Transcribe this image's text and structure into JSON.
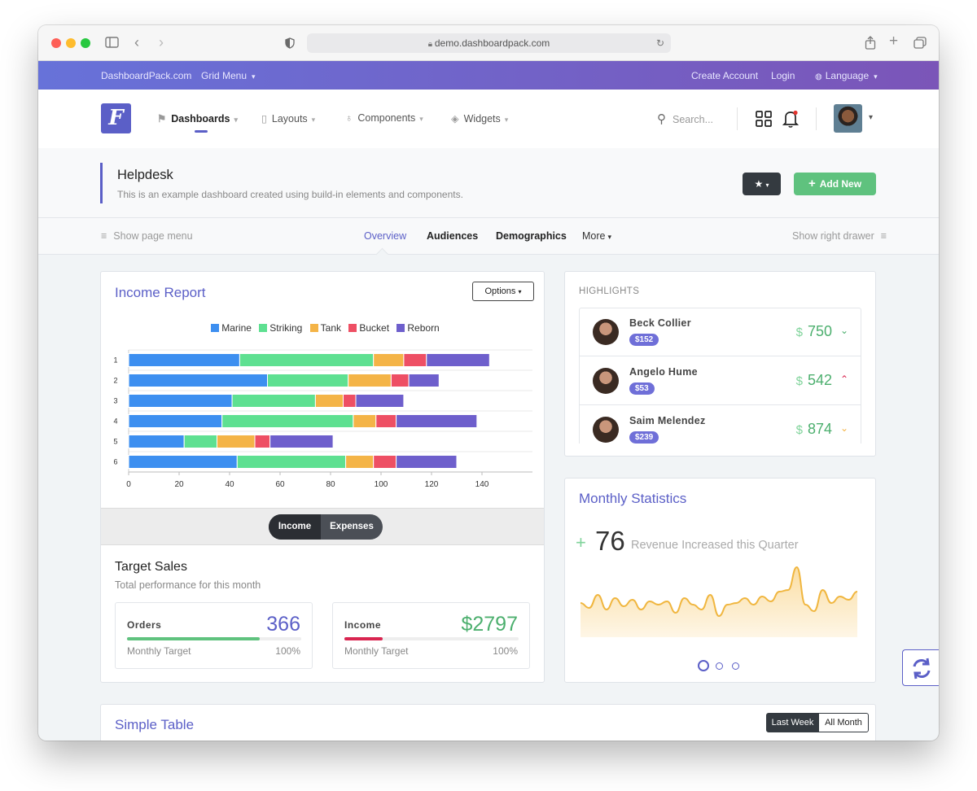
{
  "browser": {
    "url": "demo.dashboardpack.com"
  },
  "topbar": {
    "brand": "DashboardPack.com",
    "grid_menu": "Grid Menu",
    "create_account": "Create Account",
    "login": "Login",
    "language": "Language"
  },
  "header": {
    "logo_letter": "F",
    "nav": [
      {
        "label": "Dashboards"
      },
      {
        "label": "Layouts"
      },
      {
        "label": "Components"
      },
      {
        "label": "Widgets"
      }
    ],
    "search_placeholder": "Search..."
  },
  "page": {
    "title": "Helpdesk",
    "subtitle": "This is an example dashboard created using build-in elements and components.",
    "add_new": "Add New"
  },
  "subnav": {
    "show_page_menu": "Show page menu",
    "tabs": [
      "Overview",
      "Audiences",
      "Demographics",
      "More"
    ],
    "show_right_drawer": "Show right drawer"
  },
  "income_report": {
    "title": "Income Report",
    "options": "Options",
    "toggle": {
      "income": "Income",
      "expenses": "Expenses"
    }
  },
  "chart_data": {
    "type": "bar",
    "orientation": "horizontal",
    "stacked": true,
    "categories": [
      "1",
      "2",
      "3",
      "4",
      "5",
      "6"
    ],
    "series": [
      {
        "name": "Marine",
        "color": "#3d8ff0",
        "values": [
          44,
          55,
          41,
          37,
          22,
          43
        ]
      },
      {
        "name": "Striking",
        "color": "#5ee091",
        "values": [
          53,
          32,
          33,
          52,
          13,
          43
        ]
      },
      {
        "name": "Tank",
        "color": "#f4b447",
        "values": [
          12,
          17,
          11,
          9,
          15,
          11
        ]
      },
      {
        "name": "Bucket",
        "color": "#ee4f64",
        "values": [
          9,
          7,
          5,
          8,
          6,
          9
        ]
      },
      {
        "name": "Reborn",
        "color": "#6e5fcc",
        "values": [
          25,
          12,
          19,
          32,
          25,
          24
        ]
      }
    ],
    "xticks": [
      0,
      20,
      40,
      60,
      80,
      100,
      120,
      140
    ],
    "xlim": [
      0,
      160
    ],
    "legend": "top-center",
    "grid": true
  },
  "target_sales": {
    "title": "Target Sales",
    "subtitle": "Total performance for this month",
    "stats": [
      {
        "label": "Orders",
        "value": "366",
        "sub": "Monthly Target",
        "pct": "100%",
        "progress": 0.76,
        "color": "#5fc27e",
        "valueColor": "#5b5fc7"
      },
      {
        "label": "Income",
        "value": "$2797",
        "sub": "Monthly Target",
        "pct": "100%",
        "progress": 0.22,
        "color": "#d92550",
        "valueColor": "#4caf6e"
      }
    ]
  },
  "highlights": {
    "title": "HIGHLIGHTS",
    "rows": [
      {
        "name": "Beck Collier",
        "badge": "$152",
        "currency": "$",
        "value": "750",
        "arrow": "⌄",
        "arrowColor": "#4caf6e"
      },
      {
        "name": "Angelo Hume",
        "badge": "$53",
        "currency": "$",
        "value": "542",
        "arrow": "⌃",
        "arrowColor": "#d92550"
      },
      {
        "name": "Saim Melendez",
        "badge": "$239",
        "currency": "$",
        "value": "874",
        "arrow": "⌄",
        "arrowColor": "#f4b447"
      }
    ]
  },
  "monthly_statistics": {
    "title": "Monthly Statistics",
    "plus": "+",
    "value": "76",
    "caption": "Revenue Increased this Quarter",
    "sparkline": [
      42,
      36,
      52,
      34,
      48,
      38,
      46,
      34,
      44,
      40,
      44,
      30,
      48,
      40,
      34,
      52,
      26,
      40,
      42,
      48,
      40,
      50,
      44,
      56,
      58,
      86,
      40,
      32,
      58,
      42,
      50,
      46,
      56
    ]
  },
  "simple_table": {
    "title": "Simple Table",
    "last_week": "Last Week",
    "all_month": "All Month"
  }
}
